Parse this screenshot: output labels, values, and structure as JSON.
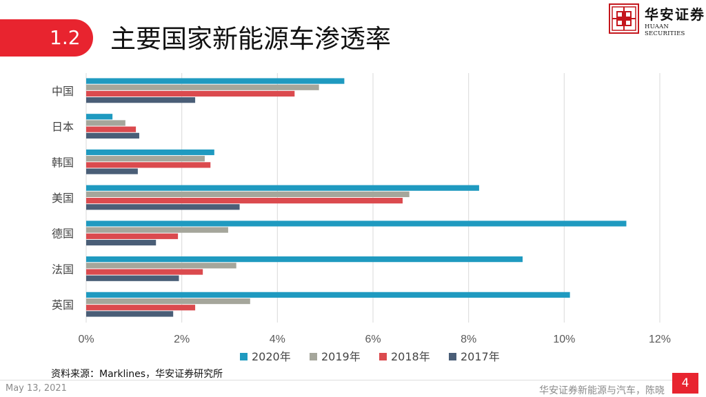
{
  "header": {
    "section_number": "1.2",
    "title": "主要国家新能源车渗透率",
    "logo_text_cn": "华安证券",
    "logo_text_en": "HUAAN SECURITIES",
    "accent_color": "#e8242f"
  },
  "chart_data": {
    "type": "bar",
    "orientation": "horizontal",
    "title": "",
    "categories": [
      "中国",
      "日本",
      "韩国",
      "美国",
      "德国",
      "法国",
      "英国"
    ],
    "series": [
      {
        "name": "2020年",
        "color": "#1f9ac0",
        "values": [
          5.4,
          0.55,
          2.68,
          8.22,
          11.3,
          9.13,
          10.12
        ]
      },
      {
        "name": "2019年",
        "color": "#a5a69b",
        "values": [
          4.87,
          0.82,
          2.48,
          6.76,
          2.97,
          3.14,
          3.43
        ]
      },
      {
        "name": "2018年",
        "color": "#db4a4e",
        "values": [
          4.36,
          1.04,
          2.6,
          6.62,
          1.92,
          2.44,
          2.28
        ]
      },
      {
        "name": "2017年",
        "color": "#4a5e77",
        "values": [
          2.28,
          1.11,
          1.08,
          3.21,
          1.46,
          1.94,
          1.82
        ]
      }
    ],
    "xlim": [
      0,
      12
    ],
    "xticks": [
      "0%",
      "2%",
      "4%",
      "6%",
      "8%",
      "10%",
      "12%"
    ],
    "grid": true,
    "legend": "bottom"
  },
  "source_note": "资料来源：Marklines，华安证券研究所",
  "footer": {
    "date": "May 13, 2021",
    "text": "华安证券新能源与汽车，陈晓",
    "page_number": "4"
  }
}
